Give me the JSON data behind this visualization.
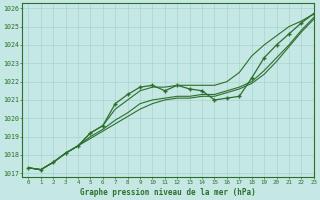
{
  "title": "Graphe pression niveau de la mer (hPa)",
  "bg_color": "#c5e8e4",
  "grid_color": "#a8d4cf",
  "line_color": "#2d6e2d",
  "xlim": [
    -0.5,
    23
  ],
  "ylim": [
    1016.8,
    1026.3
  ],
  "xticks": [
    0,
    1,
    2,
    3,
    4,
    5,
    6,
    7,
    8,
    9,
    10,
    11,
    12,
    13,
    14,
    15,
    16,
    17,
    18,
    19,
    20,
    21,
    22,
    23
  ],
  "yticks": [
    1017,
    1018,
    1019,
    1020,
    1021,
    1022,
    1023,
    1024,
    1025,
    1026
  ],
  "series": {
    "marker_line": [
      1017.3,
      1017.2,
      1017.6,
      1018.1,
      1018.5,
      1019.2,
      1019.6,
      1020.8,
      1021.3,
      1021.7,
      1021.8,
      1021.5,
      1021.8,
      1021.6,
      1021.5,
      1021.0,
      1021.1,
      1021.2,
      1022.2,
      1023.3,
      1024.0,
      1024.6,
      1025.2,
      1025.7
    ],
    "upper_line": [
      1017.3,
      1017.2,
      1017.6,
      1018.1,
      1018.5,
      1019.2,
      1019.6,
      1020.5,
      1021.0,
      1021.5,
      1021.7,
      1021.7,
      1021.8,
      1021.8,
      1021.8,
      1021.8,
      1022.0,
      1022.5,
      1023.4,
      1024.0,
      1024.5,
      1025.0,
      1025.3,
      1025.7
    ],
    "mid_line1": [
      1017.3,
      1017.2,
      1017.6,
      1018.1,
      1018.5,
      1019.0,
      1019.4,
      1019.9,
      1020.3,
      1020.8,
      1021.0,
      1021.1,
      1021.2,
      1021.2,
      1021.3,
      1021.3,
      1021.5,
      1021.7,
      1022.0,
      1022.6,
      1023.3,
      1024.0,
      1024.8,
      1025.5
    ],
    "mid_line2": [
      1017.3,
      1017.2,
      1017.6,
      1018.1,
      1018.5,
      1018.9,
      1019.3,
      1019.7,
      1020.1,
      1020.5,
      1020.8,
      1021.0,
      1021.1,
      1021.1,
      1021.2,
      1021.2,
      1021.4,
      1021.6,
      1021.9,
      1022.4,
      1023.1,
      1023.9,
      1024.7,
      1025.4
    ]
  }
}
